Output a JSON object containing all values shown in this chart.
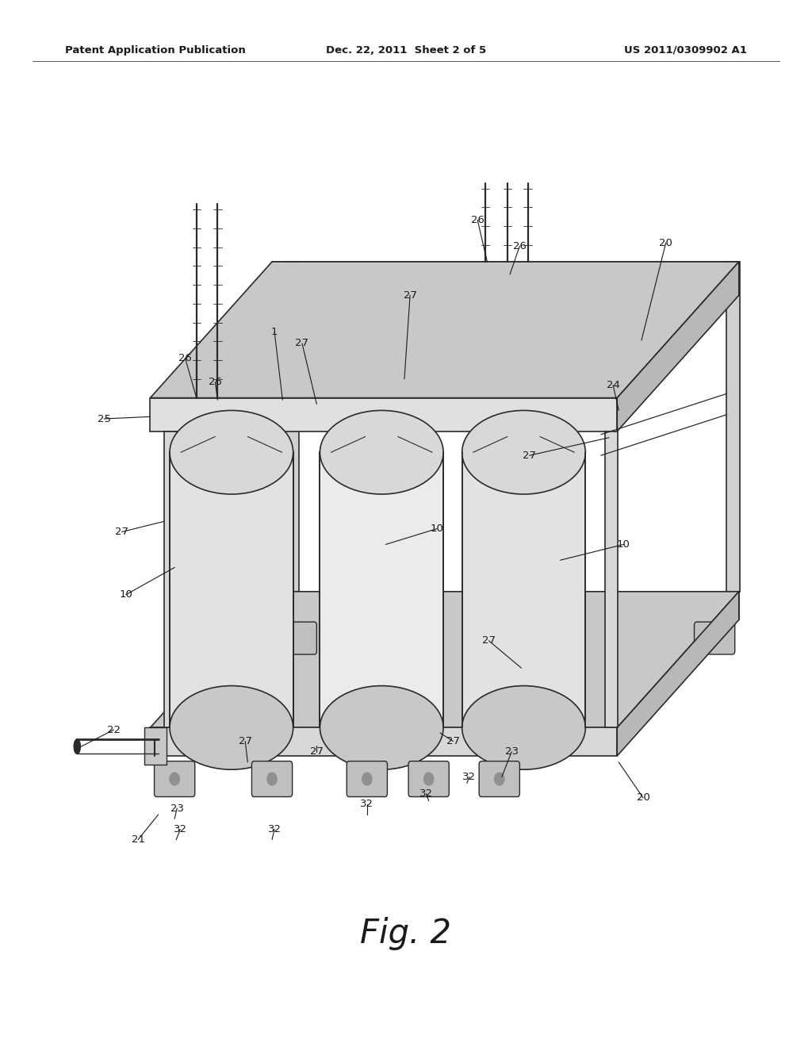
{
  "background_color": "#ffffff",
  "header_left": "Patent Application Publication",
  "header_center": "Dec. 22, 2011  Sheet 2 of 5",
  "header_right": "US 2011/0309902 A1",
  "figure_label": "Fig. 2",
  "line_color": "#2a2a2a",
  "fill_color_light": "#e8e8e8",
  "fill_color_medium": "#d0d0d0",
  "fill_color_dark": "#b0b0b0"
}
